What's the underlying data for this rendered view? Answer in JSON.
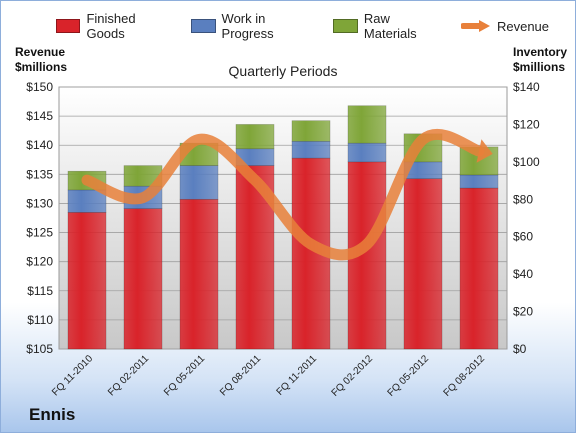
{
  "company": "Ennis",
  "colors": {
    "finished_goods": "#d9232a",
    "work_in_progress": "#5a7fbf",
    "raw_materials": "#7fa538",
    "revenue": "#e8803a"
  },
  "left_axis_title": [
    "Revenue",
    "$millions"
  ],
  "right_axis_title": [
    "Inventory",
    "$millions"
  ],
  "chart_data": {
    "type": "bar",
    "title": "Quarterly Periods",
    "categories": [
      "FQ 11-2010",
      "FQ 02-2011",
      "FQ 05-2011",
      "FQ 08-2011",
      "FQ 11-2011",
      "FQ 02-2012",
      "FQ 05-2012",
      "FQ 08-2012"
    ],
    "stacked": true,
    "series": [
      {
        "name": "Finished Goods",
        "axis": "right",
        "values": [
          73,
          75,
          80,
          98,
          102,
          100,
          91,
          86
        ]
      },
      {
        "name": "Work in Progress",
        "axis": "right",
        "values": [
          12,
          12,
          18,
          9,
          9,
          10,
          9,
          7
        ]
      },
      {
        "name": "Raw Materials",
        "axis": "right",
        "values": [
          10,
          11,
          12,
          13,
          11,
          20,
          15,
          15
        ]
      },
      {
        "name": "Revenue",
        "type": "line",
        "axis": "left",
        "values": [
          134,
          131,
          141,
          134,
          123,
          123,
          141,
          139
        ]
      }
    ],
    "left_axis": {
      "ylim": [
        105,
        150
      ],
      "ticks": [
        "$105",
        "$110",
        "$115",
        "$120",
        "$125",
        "$130",
        "$135",
        "$140",
        "$145",
        "$150"
      ]
    },
    "right_axis": {
      "ylim": [
        0,
        140
      ],
      "ticks": [
        "$0",
        "$20",
        "$40",
        "$60",
        "$80",
        "$100",
        "$120",
        "$140"
      ]
    },
    "grid": true,
    "legend": "top"
  }
}
